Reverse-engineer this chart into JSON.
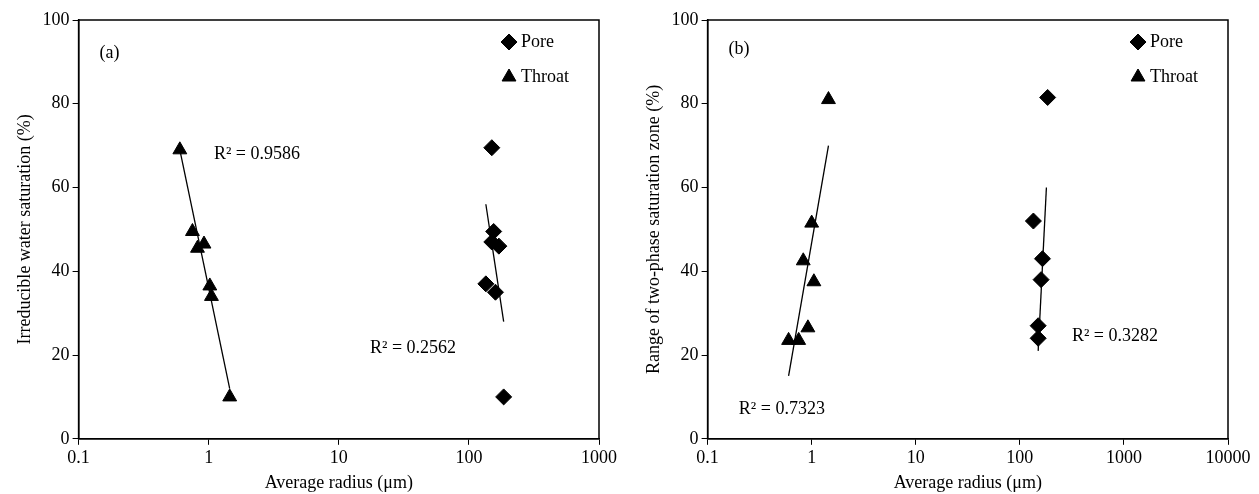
{
  "chart_data": [
    {
      "type": "scatter",
      "xlabel": "Average radius (μm)",
      "ylabel": "Irreducible water saturation (%)",
      "log": "x",
      "grid": false,
      "legend": "top right",
      "xlim": [
        0.1,
        1000
      ],
      "xticks": [
        0.1,
        1,
        10,
        100,
        1000
      ],
      "ylim": [
        0,
        100
      ],
      "yticks": [
        0,
        20,
        40,
        60,
        80,
        100
      ],
      "annotations": [
        "(a)",
        "R² = 0.9586",
        "R² = 0.2562"
      ],
      "series": [
        {
          "name": "Pore",
          "color": "#000000",
          "marker": "diamond",
          "x": [
            150,
            155,
            150,
            170,
            135,
            160,
            185
          ],
          "values": [
            69.5,
            49.5,
            47,
            46,
            37,
            35,
            10
          ]
        },
        {
          "name": "Throat",
          "color": "#000000",
          "marker": "triangle",
          "x": [
            0.6,
            0.75,
            0.82,
            0.92,
            1.02,
            1.05,
            1.45
          ],
          "values": [
            69,
            49.5,
            45.5,
            46.5,
            36.5,
            34,
            10
          ]
        },
        {
          "type": "line",
          "color": "#000000",
          "marker": "none",
          "x": [
            0.6,
            1.45
          ],
          "values": [
            69,
            12
          ]
        },
        {
          "type": "line",
          "color": "#000000",
          "marker": "none",
          "x": [
            135,
            185
          ],
          "values": [
            56,
            28
          ]
        }
      ]
    },
    {
      "type": "scatter",
      "xlabel": "Average radius (μm)",
      "ylabel": "Range of two-phase saturation zone (%)",
      "log": "x",
      "grid": false,
      "legend": "top right",
      "xlim": [
        0.1,
        10000
      ],
      "xticks": [
        0.1,
        1,
        10,
        100,
        1000,
        10000
      ],
      "ylim": [
        0,
        100
      ],
      "yticks": [
        0,
        20,
        40,
        60,
        80,
        100
      ],
      "annotations": [
        "(b)",
        "R² = 0.7323",
        "R² = 0.3282"
      ],
      "series": [
        {
          "name": "Pore",
          "color": "#000000",
          "marker": "diamond",
          "x": [
            135,
            165,
            160,
            150,
            150,
            185
          ],
          "values": [
            52,
            43,
            38,
            27,
            24,
            81.5
          ]
        },
        {
          "name": "Throat",
          "color": "#000000",
          "marker": "triangle",
          "x": [
            0.6,
            0.75,
            0.92,
            0.83,
            1.05,
            1.0,
            1.45
          ],
          "values": [
            23.5,
            23.5,
            26.5,
            42.5,
            37.5,
            51.5,
            81
          ]
        },
        {
          "type": "line",
          "color": "#000000",
          "marker": "none",
          "x": [
            0.6,
            1.45
          ],
          "values": [
            15,
            70
          ]
        },
        {
          "type": "line",
          "color": "#000000",
          "marker": "none",
          "x": [
            150,
            180
          ],
          "values": [
            21,
            60
          ]
        }
      ]
    }
  ]
}
